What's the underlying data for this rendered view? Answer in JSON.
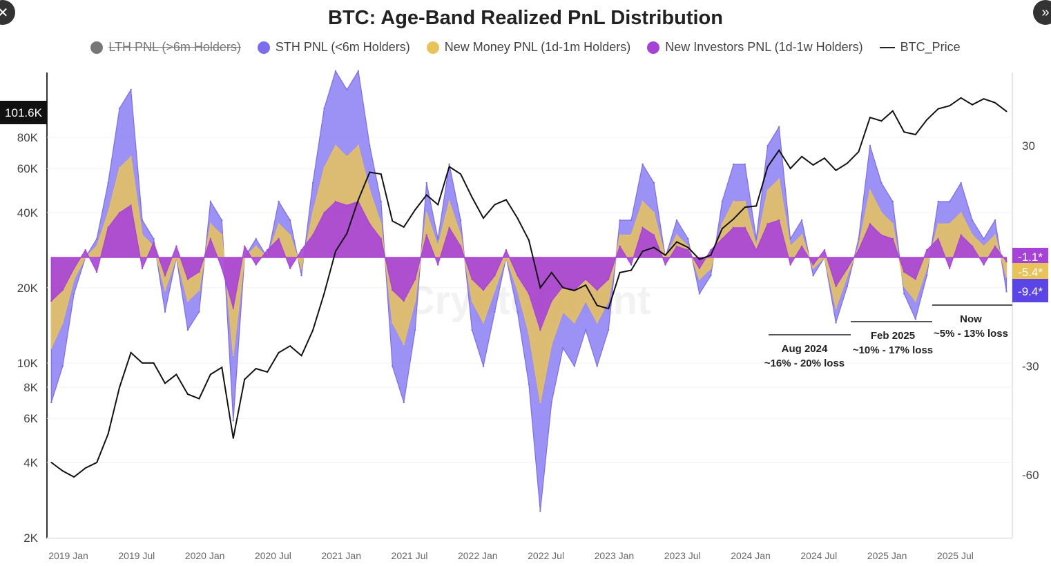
{
  "nav": {
    "close_icon": "close-icon",
    "next_icon": "double-chevron-right-icon"
  },
  "chart_data": {
    "type": "area",
    "title": "BTC: Age-Band Realized PnL Distribution",
    "start_month": "2018-11",
    "legend": [
      {
        "name": "LTH PNL (>6m Holders)",
        "color": "#777777",
        "hidden": true
      },
      {
        "name": "STH PNL (<6m Holders)",
        "color": "#7b6cf0"
      },
      {
        "name": "New Money PNL (1d-1m Holders)",
        "color": "#e8c35a"
      },
      {
        "name": "New Investors PNL (1d-1w Holders)",
        "color": "#a742d9"
      },
      {
        "name": "BTC_Price",
        "color": "#111111"
      }
    ],
    "legend_position": "top",
    "x_ticks": [
      "2019 Jan",
      "2019 Jul",
      "2020 Jan",
      "2020 Jul",
      "2021 Jan",
      "2021 Jul",
      "2022 Jan",
      "2022 Jul",
      "2023 Jan",
      "2023 Jul",
      "2024 Jan",
      "2024 Jul",
      "2025 Jan",
      "2025 Jul"
    ],
    "y_left": {
      "scale": "log",
      "ticks": [
        "2K",
        "4K",
        "6K",
        "8K",
        "10K",
        "20K",
        "40K",
        "60K",
        "80K"
      ],
      "current_label": "101.6K"
    },
    "y_right": {
      "ticks": [
        "30",
        "-30",
        "-60"
      ]
    },
    "series": [
      {
        "name": "STH PNL (<6m Holders)",
        "values": [
          -40,
          -30,
          -10,
          0,
          5,
          20,
          40,
          45,
          10,
          5,
          -15,
          0,
          -20,
          -15,
          15,
          10,
          -45,
          0,
          5,
          0,
          15,
          10,
          -5,
          20,
          40,
          50,
          45,
          50,
          30,
          15,
          -30,
          -40,
          -20,
          20,
          5,
          25,
          10,
          -20,
          -30,
          -15,
          0,
          -15,
          -35,
          -70,
          -40,
          -25,
          -30,
          -20,
          -30,
          -20,
          10,
          10,
          25,
          20,
          0,
          10,
          5,
          -10,
          -5,
          15,
          25,
          25,
          5,
          30,
          35,
          5,
          10,
          -5,
          0,
          -18,
          -8,
          5,
          30,
          20,
          15,
          -10,
          -17,
          -5,
          15,
          15,
          20,
          10,
          5,
          10,
          -9.4
        ]
      },
      {
        "name": "New Money PNL (1d-1m Holders)",
        "values": [
          -25,
          -18,
          -6,
          0,
          3,
          12,
          24,
          27,
          6,
          3,
          -9,
          0,
          -12,
          -9,
          9,
          6,
          -27,
          0,
          3,
          0,
          9,
          6,
          -3,
          12,
          24,
          30,
          27,
          30,
          18,
          9,
          -18,
          -24,
          -12,
          12,
          3,
          15,
          6,
          -12,
          -18,
          -9,
          0,
          -9,
          -21,
          -40,
          -24,
          -15,
          -18,
          -12,
          -18,
          -12,
          6,
          6,
          15,
          12,
          0,
          6,
          3,
          -6,
          -3,
          9,
          15,
          15,
          3,
          18,
          21,
          3,
          6,
          -3,
          0,
          -14,
          -5,
          3,
          18,
          12,
          9,
          -8,
          -12,
          -3,
          9,
          9,
          12,
          6,
          3,
          6,
          -5.4
        ]
      },
      {
        "name": "New Investors PNL (1d-1w Holders)",
        "values": [
          -12,
          -9,
          -3,
          2,
          -4,
          8,
          12,
          14,
          -3,
          4,
          -5,
          3,
          -6,
          -4,
          5,
          -3,
          -14,
          3,
          -2,
          2,
          5,
          -3,
          2,
          6,
          12,
          15,
          14,
          15,
          9,
          5,
          -9,
          -12,
          -6,
          6,
          -2,
          8,
          3,
          -6,
          -9,
          -5,
          2,
          -5,
          -10,
          -20,
          -12,
          -8,
          -9,
          -6,
          -9,
          -6,
          3,
          -2,
          8,
          6,
          -2,
          3,
          2,
          -3,
          2,
          5,
          8,
          8,
          2,
          9,
          10,
          -2,
          3,
          -2,
          2,
          -8,
          -3,
          2,
          9,
          6,
          5,
          -4,
          -6,
          2,
          5,
          -3,
          6,
          3,
          -2,
          3,
          -1.1
        ]
      },
      {
        "name": "BTC_Price",
        "values": [
          4000,
          3700,
          3500,
          3800,
          4000,
          5200,
          8000,
          11000,
          10000,
          10000,
          8300,
          9000,
          7500,
          7200,
          9000,
          9600,
          5000,
          8600,
          9500,
          9200,
          11000,
          11700,
          10700,
          13500,
          19000,
          28000,
          33000,
          45000,
          58000,
          57000,
          37000,
          35000,
          41000,
          47000,
          43000,
          61000,
          57000,
          46000,
          38000,
          43000,
          45000,
          38000,
          31000,
          20000,
          23000,
          20000,
          19500,
          20500,
          17000,
          16500,
          23000,
          23500,
          28000,
          29000,
          27000,
          30500,
          29000,
          26000,
          27000,
          34500,
          37700,
          42000,
          42500,
          61000,
          71000,
          60000,
          67000,
          62000,
          66000,
          59000,
          63000,
          70000,
          96000,
          93000,
          102000,
          84000,
          82000,
          94000,
          104000,
          107000,
          115000,
          108000,
          114000,
          110000,
          101600
        ]
      }
    ],
    "end_badges": [
      "-1.1*",
      "-5.4*",
      "-9.4*"
    ],
    "annotations": [
      {
        "title": "Aug 2024",
        "text": "~16% - 20% loss"
      },
      {
        "title": "Feb 2025",
        "text": "~10% - 17% loss"
      },
      {
        "title": "Now",
        "text": "~5% - 13% loss"
      }
    ],
    "watermark": "CryptoQuant"
  }
}
